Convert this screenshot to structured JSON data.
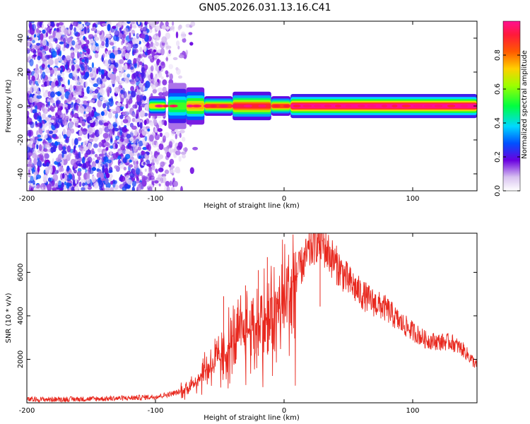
{
  "title": "GN05.2026.031.13.16.C41",
  "colorbar": {
    "label": "Normalized spectral amplitude",
    "ticks": [
      {
        "value": 0.0,
        "label": "0.0"
      },
      {
        "value": 0.2,
        "label": "0.2"
      },
      {
        "value": 0.4,
        "label": "0.4"
      },
      {
        "value": 0.6,
        "label": "0.6"
      },
      {
        "value": 0.8,
        "label": "0.8"
      }
    ],
    "range": [
      0,
      1
    ]
  },
  "chart_data": [
    {
      "type": "heatmap",
      "title": "",
      "xlabel": "Height of straight line (km)",
      "ylabel": "Frequency (Hz)",
      "xlim": [
        -200,
        150
      ],
      "ylim": [
        -50,
        50
      ],
      "xticks": [
        {
          "value": -200,
          "label": "-200"
        },
        {
          "value": -100,
          "label": "-100"
        },
        {
          "value": 0,
          "label": "0"
        },
        {
          "value": 100,
          "label": "100"
        }
      ],
      "yticks": [
        {
          "value": -40,
          "label": "-40"
        },
        {
          "value": -20,
          "label": "-20"
        },
        {
          "value": 0,
          "label": "0"
        },
        {
          "value": 20,
          "label": "20"
        },
        {
          "value": 40,
          "label": "40"
        }
      ],
      "noise_region": {
        "x_from": -200,
        "x_to": -78,
        "amplitude_range": [
          0.0,
          0.25
        ]
      },
      "signal_band": {
        "center_hz": 0,
        "x_from": -105,
        "x_to": 150
      },
      "segments": [
        {
          "x_from": -105,
          "x_to": -92,
          "halfwidth_hz": 2,
          "peak": 0.7
        },
        {
          "x_from": -90,
          "x_to": -76,
          "halfwidth_hz": 5,
          "peak": 0.55
        },
        {
          "x_from": -76,
          "x_to": -62,
          "halfwidth_hz": 4,
          "peak": 0.75
        },
        {
          "x_from": -62,
          "x_to": -40,
          "halfwidth_hz": 2,
          "peak": 0.85
        },
        {
          "x_from": -40,
          "x_to": -10,
          "halfwidth_hz": 3,
          "peak": 0.9
        },
        {
          "x_from": -10,
          "x_to": 5,
          "halfwidth_hz": 2,
          "peak": 0.85
        },
        {
          "x_from": 5,
          "x_to": 150,
          "halfwidth_hz": 2.5,
          "peak": 1.0
        }
      ]
    },
    {
      "type": "line",
      "title": "",
      "xlabel": "Height of straight line (km)",
      "ylabel": "SNR (10 * v/v)",
      "xlim": [
        -200,
        150
      ],
      "ylim": [
        0,
        7800
      ],
      "xticks": [
        {
          "value": -200,
          "label": "-200"
        },
        {
          "value": -100,
          "label": "-100"
        },
        {
          "value": 0,
          "label": "0"
        },
        {
          "value": 100,
          "label": "100"
        }
      ],
      "yticks": [
        {
          "value": 2000,
          "label": "2000"
        },
        {
          "value": 4000,
          "label": "4000"
        },
        {
          "value": 6000,
          "label": "6000"
        }
      ],
      "series": [
        {
          "name": "SNR",
          "color": "#e8281e",
          "x": [
            -200,
            -180,
            -160,
            -140,
            -120,
            -100,
            -90,
            -80,
            -70,
            -60,
            -50,
            -40,
            -30,
            -20,
            -10,
            0,
            10,
            20,
            25,
            30,
            40,
            50,
            60,
            70,
            80,
            90,
            100,
            110,
            120,
            130,
            140,
            150
          ],
          "y": [
            150,
            160,
            170,
            190,
            220,
            280,
            380,
            520,
            900,
            1600,
            2000,
            2700,
            3300,
            3600,
            3900,
            4600,
            5900,
            7000,
            7500,
            7300,
            6400,
            5600,
            5000,
            4600,
            4300,
            3700,
            3300,
            2900,
            2800,
            2800,
            2400,
            1700
          ]
        }
      ],
      "spikes": [
        {
          "x": -47,
          "y": 4900
        },
        {
          "x": -30,
          "y": 5400
        },
        {
          "x": -20,
          "y": 6100
        },
        {
          "x": -13,
          "y": 6700
        },
        {
          "x": 28,
          "y": 7800
        }
      ]
    }
  ]
}
